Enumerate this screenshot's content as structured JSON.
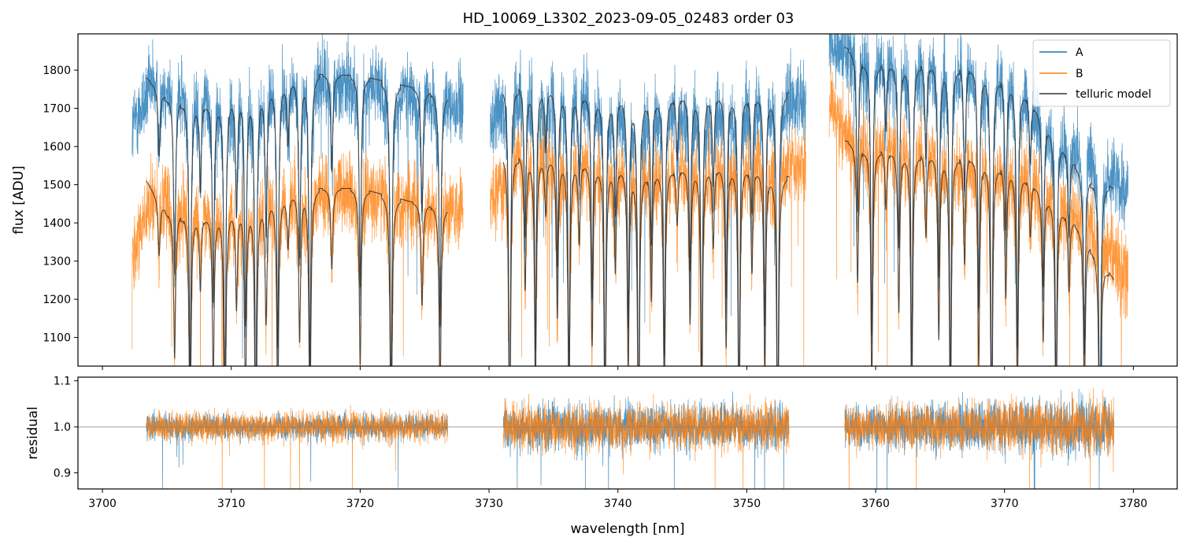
{
  "title": "HD_10069_L3302_2023-09-05_02483  order 03",
  "colors": {
    "A": "#1f77b4",
    "B": "#ff7f0e",
    "telluric": "#333333",
    "refline": "#808080"
  },
  "chart_data": [
    {
      "panel": "top",
      "type": "line",
      "xlabel": "",
      "ylabel": "flux [ADU]",
      "xlim": [
        3698.1,
        3783.4
      ],
      "ylim": [
        1025,
        1895
      ],
      "yticks": [
        1100,
        1200,
        1300,
        1400,
        1500,
        1600,
        1700,
        1800
      ],
      "xticks": [
        3700,
        3710,
        3720,
        3730,
        3740,
        3750,
        3760,
        3770,
        3780
      ],
      "legend": {
        "placement": "top-right",
        "entries": [
          "A",
          "B",
          "telluric model"
        ]
      },
      "segments": [
        [
          3702.3,
          3728.0
        ],
        [
          3730.1,
          3754.6
        ],
        [
          3756.4,
          3779.6
        ]
      ],
      "model_segments": [
        [
          3703.4,
          3726.8
        ],
        [
          3731.1,
          3753.3
        ],
        [
          3757.6,
          3778.5
        ]
      ],
      "series": [
        {
          "name": "A",
          "level": [
            [
              3702.3,
              1650
            ],
            [
              3704,
              1770
            ],
            [
              3707,
              1740
            ],
            [
              3710,
              1730
            ],
            [
              3714,
              1770
            ],
            [
              3718,
              1780
            ],
            [
              3722,
              1745
            ],
            [
              3726,
              1720
            ],
            [
              3728.0,
              1700
            ],
            [
              3730.1,
              1660
            ],
            [
              3732,
              1760
            ],
            [
              3735,
              1745
            ],
            [
              3738,
              1735
            ],
            [
              3742,
              1700
            ],
            [
              3746,
              1705
            ],
            [
              3750,
              1715
            ],
            [
              3754.6,
              1720
            ],
            [
              3756.4,
              1880
            ],
            [
              3758,
              1850
            ],
            [
              3762,
              1815
            ],
            [
              3766,
              1810
            ],
            [
              3770,
              1790
            ],
            [
              3774,
              1640
            ],
            [
              3777,
              1560
            ],
            [
              3779.6,
              1480
            ]
          ],
          "noise": 75
        },
        {
          "name": "B",
          "level": [
            [
              3702.3,
              1320
            ],
            [
              3704,
              1470
            ],
            [
              3707,
              1440
            ],
            [
              3710,
              1445
            ],
            [
              3714,
              1475
            ],
            [
              3718,
              1490
            ],
            [
              3722,
              1470
            ],
            [
              3726,
              1445
            ],
            [
              3728.0,
              1430
            ],
            [
              3730.1,
              1450
            ],
            [
              3732,
              1590
            ],
            [
              3735,
              1560
            ],
            [
              3738,
              1550
            ],
            [
              3742,
              1555
            ],
            [
              3746,
              1550
            ],
            [
              3750,
              1560
            ],
            [
              3754.6,
              1550
            ],
            [
              3756.4,
              1700
            ],
            [
              3758,
              1620
            ],
            [
              3762,
              1600
            ],
            [
              3766,
              1580
            ],
            [
              3770,
              1560
            ],
            [
              3774,
              1470
            ],
            [
              3777,
              1390
            ],
            [
              3779.6,
              1250
            ]
          ],
          "noise": 75
        },
        {
          "name": "telluric model",
          "a_level": [
            [
              3703.4,
              1780
            ],
            [
              3705,
              1730
            ],
            [
              3708,
              1720
            ],
            [
              3712,
              1755
            ],
            [
              3716,
              1790
            ],
            [
              3720,
              1785
            ],
            [
              3724,
              1755
            ],
            [
              3726.8,
              1735
            ],
            [
              3731.1,
              1765
            ],
            [
              3734,
              1760
            ],
            [
              3738,
              1740
            ],
            [
              3742,
              1730
            ],
            [
              3746,
              1740
            ],
            [
              3750,
              1745
            ],
            [
              3753.3,
              1740
            ],
            [
              3757.6,
              1860
            ],
            [
              3760,
              1820
            ],
            [
              3764,
              1825
            ],
            [
              3768,
              1815
            ],
            [
              3771,
              1770
            ],
            [
              3774,
              1640
            ],
            [
              3776,
              1530
            ],
            [
              3778.5,
              1490
            ]
          ],
          "b_level": [
            [
              3703.4,
              1510
            ],
            [
              3705,
              1430
            ],
            [
              3708,
              1420
            ],
            [
              3712,
              1455
            ],
            [
              3716,
              1490
            ],
            [
              3720,
              1490
            ],
            [
              3724,
              1455
            ],
            [
              3726.8,
              1440
            ],
            [
              3731.1,
              1585
            ],
            [
              3734,
              1575
            ],
            [
              3738,
              1560
            ],
            [
              3742,
              1540
            ],
            [
              3746,
              1550
            ],
            [
              3750,
              1555
            ],
            [
              3753.3,
              1520
            ],
            [
              3757.6,
              1615
            ],
            [
              3760,
              1595
            ],
            [
              3764,
              1585
            ],
            [
              3768,
              1580
            ],
            [
              3771,
              1540
            ],
            [
              3774,
              1460
            ],
            [
              3776,
              1380
            ],
            [
              3778.5,
              1250
            ]
          ]
        }
      ],
      "absorption_lines": [
        3704.4,
        3705.6,
        3706.8,
        3707.6,
        3708.6,
        3709.5,
        3710.4,
        3711.1,
        3711.9,
        3712.7,
        3713.6,
        3714.4,
        3715.3,
        3716.1,
        3717.8,
        3720.0,
        3722.4,
        3724.8,
        3726.2,
        3731.6,
        3732.8,
        3733.6,
        3734.4,
        3735.3,
        3736.2,
        3737.0,
        3738.0,
        3739.0,
        3739.8,
        3740.8,
        3741.6,
        3742.6,
        3743.6,
        3744.6,
        3745.6,
        3746.5,
        3747.4,
        3748.4,
        3749.4,
        3750.4,
        3751.4,
        3752.4,
        3758.6,
        3759.7,
        3760.8,
        3761.8,
        3762.8,
        3763.9,
        3764.9,
        3765.8,
        3766.9,
        3768.0,
        3769.0,
        3770.1,
        3771.0,
        3772.0,
        3773.0,
        3774.0,
        3775.0,
        3776.2,
        3777.4
      ]
    },
    {
      "panel": "bottom",
      "type": "line",
      "xlabel": "wavelength [nm]",
      "ylabel": "residual",
      "xlim": [
        3698.1,
        3783.4
      ],
      "ylim": [
        0.865,
        1.108
      ],
      "yticks": [
        0.9,
        1.0,
        1.1
      ],
      "xticks": [
        3700,
        3710,
        3720,
        3730,
        3740,
        3750,
        3760,
        3770,
        3780
      ],
      "reference_line": 1.0,
      "segments": [
        [
          3703.4,
          3726.8
        ],
        [
          3731.1,
          3753.3
        ],
        [
          3757.6,
          3778.5
        ]
      ],
      "series": [
        {
          "name": "A",
          "center": 1.0,
          "noise": [
            [
              3703.4,
              0.025
            ],
            [
              3727,
              0.025
            ],
            [
              3731,
              0.045
            ],
            [
              3753,
              0.045
            ],
            [
              3757.6,
              0.04
            ],
            [
              3778.5,
              0.06
            ]
          ]
        },
        {
          "name": "B",
          "center": 1.0,
          "noise": [
            [
              3703.4,
              0.03
            ],
            [
              3727,
              0.03
            ],
            [
              3731,
              0.045
            ],
            [
              3753,
              0.045
            ],
            [
              3757.6,
              0.04
            ],
            [
              3778.5,
              0.06
            ]
          ]
        }
      ]
    }
  ]
}
